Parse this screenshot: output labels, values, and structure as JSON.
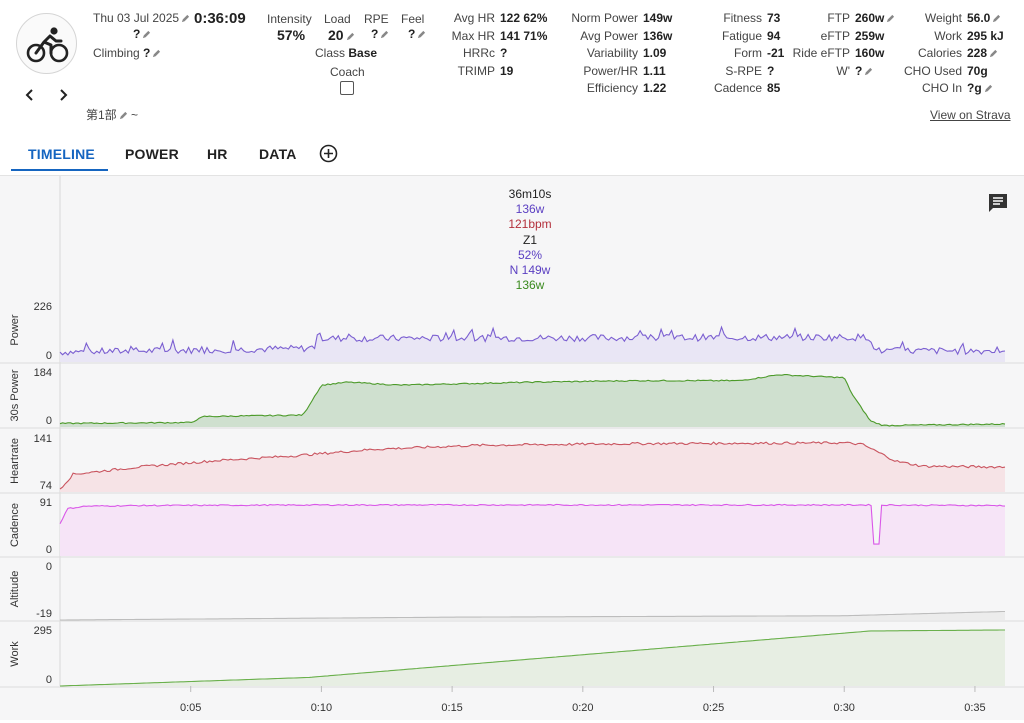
{
  "activity": {
    "date": "Thu 03 Jul 2025",
    "duration": "0:36:09",
    "name_value": "?",
    "climbing_label": "Climbing",
    "climbing_value": "?",
    "lap_label": "第1部",
    "lap_suffix": "~"
  },
  "metrics_a": {
    "intensity_label": "Intensity",
    "intensity_value": "57%",
    "load_label": "Load",
    "load_value": "20",
    "rpe_label": "RPE",
    "rpe_value": "?",
    "feel_label": "Feel",
    "feel_value": "?",
    "class_label": "Class",
    "class_value": "Base",
    "coach_label": "Coach"
  },
  "metrics_hr": [
    {
      "label": "Avg HR",
      "value": "122 62%"
    },
    {
      "label": "Max HR",
      "value": "141 71%"
    },
    {
      "label": "HRRc",
      "value": "?"
    },
    {
      "label": "TRIMP",
      "value": "19"
    }
  ],
  "metrics_power": [
    {
      "label": "Norm Power",
      "value": "149w"
    },
    {
      "label": "Avg Power",
      "value": "136w"
    },
    {
      "label": "Variability",
      "value": "1.09"
    },
    {
      "label": "Power/HR",
      "value": "1.11"
    },
    {
      "label": "Efficiency",
      "value": "1.22"
    }
  ],
  "metrics_fitness": [
    {
      "label": "Fitness",
      "value": "73"
    },
    {
      "label": "Fatigue",
      "value": "94"
    },
    {
      "label": "Form",
      "value": "-21"
    },
    {
      "label": "S-RPE",
      "value": "?"
    },
    {
      "label": "Cadence",
      "value": "85"
    }
  ],
  "metrics_ftp": [
    {
      "label": "FTP",
      "value": "260w"
    },
    {
      "label": "eFTP",
      "value": "259w"
    },
    {
      "label": "Ride eFTP",
      "value": "160w"
    },
    {
      "label": "W'",
      "value": "?"
    }
  ],
  "metrics_body": [
    {
      "label": "Weight",
      "value": "56.0"
    },
    {
      "label": "Work",
      "value": "295 kJ"
    },
    {
      "label": "Calories",
      "value": "228"
    },
    {
      "label": "CHO Used",
      "value": "70g"
    },
    {
      "label": "CHO In",
      "value": "?g"
    }
  ],
  "view_on_strava": "View on Strava",
  "tabs": [
    "TIMELINE",
    "POWER",
    "HR",
    "DATA"
  ],
  "tooltip": [
    "36m10s",
    "136w",
    "121bpm",
    "Z1",
    "52%",
    "N 149w",
    "136w"
  ],
  "colors": {
    "power": "#7b5fd1",
    "power_fill": "#e9e6f5",
    "power30": "#4c9a2a",
    "power30_fill": "#cfe0cf",
    "hr": "#c9545f",
    "hr_fill": "#f6e3e6",
    "cadence": "#d957e8",
    "cadence_fill": "#f6e4f7",
    "altitude": "#bdbdbd",
    "work": "#6ab04c",
    "work_fill": "#e7eee3",
    "accent": "#1565c0"
  },
  "chart_data": {
    "type": "line",
    "x_ticks": [
      "0:05",
      "0:10",
      "0:15",
      "0:20",
      "0:25",
      "0:30",
      "0:35"
    ],
    "x_range_min": [
      0,
      36.15
    ],
    "panels": [
      {
        "name": "Power",
        "ymin": 0,
        "ymax": 226,
        "profile": [
          [
            0,
            40
          ],
          [
            9.5,
            55
          ],
          [
            9.8,
            65
          ],
          [
            10,
            95
          ],
          [
            31,
            100
          ],
          [
            31.2,
            45
          ],
          [
            36.15,
            45
          ]
        ]
      },
      {
        "name": "30s Power",
        "ymin": 0,
        "ymax": 184,
        "profile": [
          [
            0,
            12
          ],
          [
            5,
            15
          ],
          [
            5.5,
            35
          ],
          [
            9.3,
            40
          ],
          [
            10,
            140
          ],
          [
            11,
            150
          ],
          [
            13,
            140
          ],
          [
            18,
            150
          ],
          [
            22,
            155
          ],
          [
            26,
            155
          ],
          [
            27.5,
            175
          ],
          [
            30,
            165
          ],
          [
            30.3,
            110
          ],
          [
            31,
            20
          ],
          [
            31.5,
            5
          ],
          [
            36.15,
            10
          ]
        ]
      },
      {
        "name": "Heartrate",
        "ymin": 74,
        "ymax": 141,
        "profile": [
          [
            0,
            78
          ],
          [
            0.5,
            96
          ],
          [
            3,
            105
          ],
          [
            6,
            113
          ],
          [
            9,
            119
          ],
          [
            12,
            127
          ],
          [
            16,
            132
          ],
          [
            22,
            134
          ],
          [
            30,
            135
          ],
          [
            30.7,
            133
          ],
          [
            32,
            112
          ],
          [
            33,
            106
          ],
          [
            36.15,
            105
          ]
        ]
      },
      {
        "name": "Cadence",
        "ymin": 0,
        "ymax": 91,
        "profile": [
          [
            0,
            55
          ],
          [
            0.3,
            80
          ],
          [
            1,
            84
          ],
          [
            3,
            85
          ],
          [
            10,
            86
          ],
          [
            31,
            86
          ],
          [
            36.15,
            85
          ]
        ]
      },
      {
        "name": "Altitude",
        "ymin": -19,
        "ymax": 0,
        "profile": [
          [
            0,
            -19
          ],
          [
            15,
            -18
          ],
          [
            30,
            -17.5
          ],
          [
            36.15,
            -16
          ]
        ]
      },
      {
        "name": "Work",
        "ymin": 0,
        "ymax": 295,
        "profile": [
          [
            0,
            0
          ],
          [
            9.5,
            45
          ],
          [
            31,
            290
          ],
          [
            36.15,
            295
          ]
        ]
      }
    ]
  }
}
